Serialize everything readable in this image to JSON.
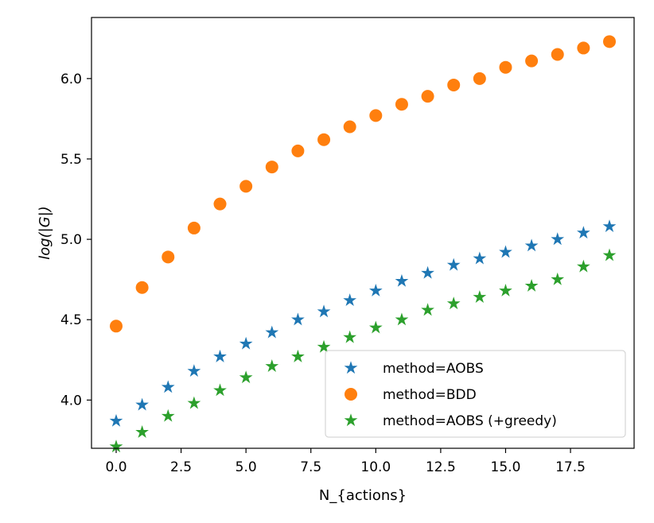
{
  "chart_data": {
    "type": "scatter",
    "title": "",
    "xlabel": "N_{actions}",
    "ylabel": "log(|G|)",
    "xlim": [
      -0.95,
      19.95
    ],
    "ylim": [
      3.7,
      6.38
    ],
    "xticks": [
      0.0,
      2.5,
      5.0,
      7.5,
      10.0,
      12.5,
      15.0,
      17.5
    ],
    "xtick_labels": [
      "0.0",
      "2.5",
      "5.0",
      "7.5",
      "10.0",
      "12.5",
      "15.0",
      "17.5"
    ],
    "yticks": [
      4.0,
      4.5,
      5.0,
      5.5,
      6.0
    ],
    "ytick_labels": [
      "4.0",
      "4.5",
      "5.0",
      "5.5",
      "6.0"
    ],
    "grid": false,
    "legend_position": "lower-right",
    "series": [
      {
        "name": "method=AOBS",
        "marker": "star",
        "color": "#1f77b4",
        "x": [
          0,
          1,
          2,
          3,
          4,
          5,
          6,
          7,
          8,
          9,
          10,
          11,
          12,
          13,
          14,
          15,
          16,
          17,
          18,
          19
        ],
        "y": [
          3.87,
          3.97,
          4.08,
          4.18,
          4.27,
          4.35,
          4.42,
          4.5,
          4.55,
          4.62,
          4.68,
          4.74,
          4.79,
          4.84,
          4.88,
          4.92,
          4.96,
          5.0,
          5.04,
          5.08
        ]
      },
      {
        "name": "method=BDD",
        "marker": "circle",
        "color": "#ff7f0e",
        "x": [
          0,
          1,
          2,
          3,
          4,
          5,
          6,
          7,
          8,
          9,
          10,
          11,
          12,
          13,
          14,
          15,
          16,
          17,
          18,
          19
        ],
        "y": [
          4.46,
          4.7,
          4.89,
          5.07,
          5.22,
          5.33,
          5.45,
          5.55,
          5.62,
          5.7,
          5.77,
          5.84,
          5.89,
          5.96,
          6.0,
          6.07,
          6.11,
          6.15,
          6.19,
          6.23
        ]
      },
      {
        "name": "method=AOBS (+greedy)",
        "marker": "star",
        "color": "#2ca02c",
        "x": [
          0,
          1,
          2,
          3,
          4,
          5,
          6,
          7,
          8,
          9,
          10,
          11,
          12,
          13,
          14,
          15,
          16,
          17,
          18,
          19
        ],
        "y": [
          3.71,
          3.8,
          3.9,
          3.98,
          4.06,
          4.14,
          4.21,
          4.27,
          4.33,
          4.39,
          4.45,
          4.5,
          4.56,
          4.6,
          4.64,
          4.68,
          4.71,
          4.75,
          4.83,
          4.9
        ]
      }
    ]
  }
}
